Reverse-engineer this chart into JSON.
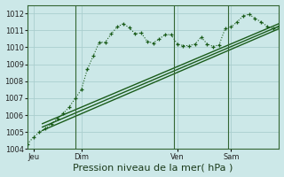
{
  "xlabel": "Pression niveau de la mer( hPa )",
  "bg_color": "#cce8e8",
  "grid_color": "#aacece",
  "line_color": "#1a5c1a",
  "ylim": [
    1004,
    1012.5
  ],
  "yticks": [
    1004,
    1005,
    1006,
    1007,
    1008,
    1009,
    1010,
    1011,
    1012
  ],
  "xlim": [
    0,
    84
  ],
  "day_labels": [
    "Jeu",
    "Dim",
    "Ven",
    "Sam"
  ],
  "day_positions": [
    2,
    18,
    50,
    68
  ],
  "vline_positions": [
    16,
    49,
    67
  ],
  "series1_x": [
    0,
    2,
    4,
    6,
    8,
    10,
    12,
    14,
    16,
    18,
    20,
    22,
    24,
    26,
    28,
    30,
    32,
    34,
    36,
    38,
    40,
    42,
    44,
    46,
    48,
    50,
    52,
    54,
    56,
    58,
    60,
    62,
    64,
    66,
    68,
    70,
    72,
    74,
    76,
    78,
    80,
    82,
    84
  ],
  "series1_y": [
    1004.3,
    1004.7,
    1005.0,
    1005.2,
    1005.5,
    1005.8,
    1006.1,
    1006.5,
    1007.0,
    1007.5,
    1008.7,
    1009.5,
    1010.3,
    1010.3,
    1010.8,
    1011.2,
    1011.4,
    1011.15,
    1010.8,
    1010.85,
    1010.35,
    1010.25,
    1010.5,
    1010.75,
    1010.75,
    1010.2,
    1010.1,
    1010.1,
    1010.2,
    1010.6,
    1010.2,
    1010.05,
    1010.15,
    1011.1,
    1011.2,
    1011.5,
    1011.85,
    1011.95,
    1011.7,
    1011.5,
    1011.25,
    1011.1,
    1011.2
  ],
  "series2_x": [
    5,
    84
  ],
  "series2_y": [
    1005.1,
    1011.1
  ],
  "series3_x": [
    5,
    84
  ],
  "series3_y": [
    1005.3,
    1011.25
  ],
  "series4_x": [
    5,
    84
  ],
  "series4_y": [
    1005.5,
    1011.4
  ],
  "xlabel_fontsize": 8,
  "tick_labelsize": 6,
  "linewidth": 1.0,
  "marker_size": 3.5,
  "vline_color": "#336633",
  "vline_lw": 0.8
}
